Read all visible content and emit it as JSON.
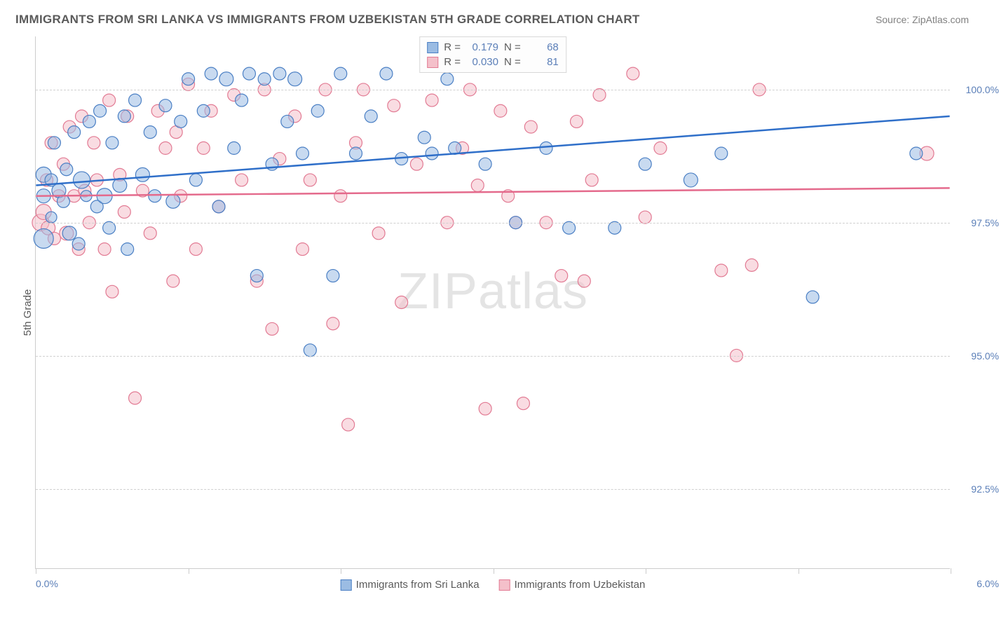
{
  "title": "IMMIGRANTS FROM SRI LANKA VS IMMIGRANTS FROM UZBEKISTAN 5TH GRADE CORRELATION CHART",
  "source": "Source: ZipAtlas.com",
  "watermark_a": "ZIP",
  "watermark_b": "atlas",
  "chart": {
    "type": "scatter",
    "ylabel": "5th Grade",
    "xlim": [
      0.0,
      6.0
    ],
    "ylim": [
      91.0,
      101.0
    ],
    "yticks": [
      92.5,
      95.0,
      97.5,
      100.0
    ],
    "ytick_labels": [
      "92.5%",
      "95.0%",
      "97.5%",
      "100.0%"
    ],
    "xticks": [
      0.0,
      1.0,
      2.0,
      3.0,
      4.0,
      5.0,
      6.0
    ],
    "xtick_label_left": "0.0%",
    "xtick_label_right": "6.0%",
    "background_color": "#ffffff",
    "grid_color": "#d0d0d0",
    "axis_color": "#cccccc",
    "series": [
      {
        "name": "Immigrants from Sri Lanka",
        "color_fill": "#9bbce3",
        "color_stroke": "#4a7fc4",
        "line_color": "#2f6fc9",
        "marker_opacity": 0.55,
        "trend": {
          "x1": 0.0,
          "y1": 98.2,
          "x2": 6.0,
          "y2": 99.5
        },
        "stats": {
          "R": "0.179",
          "N": "68"
        },
        "points": [
          {
            "x": 0.05,
            "y": 98.4,
            "r": 11
          },
          {
            "x": 0.05,
            "y": 98.0,
            "r": 10
          },
          {
            "x": 0.05,
            "y": 97.2,
            "r": 14
          },
          {
            "x": 0.1,
            "y": 98.3,
            "r": 9
          },
          {
            "x": 0.1,
            "y": 97.6,
            "r": 8
          },
          {
            "x": 0.12,
            "y": 99.0,
            "r": 9
          },
          {
            "x": 0.15,
            "y": 98.1,
            "r": 10
          },
          {
            "x": 0.18,
            "y": 97.9,
            "r": 9
          },
          {
            "x": 0.2,
            "y": 98.5,
            "r": 9
          },
          {
            "x": 0.22,
            "y": 97.3,
            "r": 10
          },
          {
            "x": 0.25,
            "y": 99.2,
            "r": 9
          },
          {
            "x": 0.28,
            "y": 97.1,
            "r": 9
          },
          {
            "x": 0.3,
            "y": 98.3,
            "r": 12
          },
          {
            "x": 0.33,
            "y": 98.0,
            "r": 8
          },
          {
            "x": 0.35,
            "y": 99.4,
            "r": 9
          },
          {
            "x": 0.4,
            "y": 97.8,
            "r": 9
          },
          {
            "x": 0.42,
            "y": 99.6,
            "r": 9
          },
          {
            "x": 0.45,
            "y": 98.0,
            "r": 11
          },
          {
            "x": 0.48,
            "y": 97.4,
            "r": 9
          },
          {
            "x": 0.5,
            "y": 99.0,
            "r": 9
          },
          {
            "x": 0.55,
            "y": 98.2,
            "r": 10
          },
          {
            "x": 0.58,
            "y": 99.5,
            "r": 9
          },
          {
            "x": 0.6,
            "y": 97.0,
            "r": 9
          },
          {
            "x": 0.65,
            "y": 99.8,
            "r": 9
          },
          {
            "x": 0.7,
            "y": 98.4,
            "r": 10
          },
          {
            "x": 0.75,
            "y": 99.2,
            "r": 9
          },
          {
            "x": 0.78,
            "y": 98.0,
            "r": 9
          },
          {
            "x": 0.85,
            "y": 99.7,
            "r": 9
          },
          {
            "x": 0.9,
            "y": 97.9,
            "r": 10
          },
          {
            "x": 0.95,
            "y": 99.4,
            "r": 9
          },
          {
            "x": 1.0,
            "y": 100.2,
            "r": 9
          },
          {
            "x": 1.05,
            "y": 98.3,
            "r": 9
          },
          {
            "x": 1.1,
            "y": 99.6,
            "r": 9
          },
          {
            "x": 1.15,
            "y": 100.3,
            "r": 9
          },
          {
            "x": 1.2,
            "y": 97.8,
            "r": 9
          },
          {
            "x": 1.25,
            "y": 100.2,
            "r": 10
          },
          {
            "x": 1.3,
            "y": 98.9,
            "r": 9
          },
          {
            "x": 1.35,
            "y": 99.8,
            "r": 9
          },
          {
            "x": 1.4,
            "y": 100.3,
            "r": 9
          },
          {
            "x": 1.45,
            "y": 96.5,
            "r": 9
          },
          {
            "x": 1.5,
            "y": 100.2,
            "r": 9
          },
          {
            "x": 1.55,
            "y": 98.6,
            "r": 9
          },
          {
            "x": 1.6,
            "y": 100.3,
            "r": 9
          },
          {
            "x": 1.65,
            "y": 99.4,
            "r": 9
          },
          {
            "x": 1.7,
            "y": 100.2,
            "r": 10
          },
          {
            "x": 1.75,
            "y": 98.8,
            "r": 9
          },
          {
            "x": 1.8,
            "y": 95.1,
            "r": 9
          },
          {
            "x": 1.85,
            "y": 99.6,
            "r": 9
          },
          {
            "x": 1.95,
            "y": 96.5,
            "r": 9
          },
          {
            "x": 2.0,
            "y": 100.3,
            "r": 9
          },
          {
            "x": 2.1,
            "y": 98.8,
            "r": 9
          },
          {
            "x": 2.2,
            "y": 99.5,
            "r": 9
          },
          {
            "x": 2.3,
            "y": 100.3,
            "r": 9
          },
          {
            "x": 2.4,
            "y": 98.7,
            "r": 9
          },
          {
            "x": 2.55,
            "y": 99.1,
            "r": 9
          },
          {
            "x": 2.6,
            "y": 98.8,
            "r": 9
          },
          {
            "x": 2.7,
            "y": 100.2,
            "r": 9
          },
          {
            "x": 2.75,
            "y": 98.9,
            "r": 9
          },
          {
            "x": 2.95,
            "y": 98.6,
            "r": 9
          },
          {
            "x": 3.15,
            "y": 97.5,
            "r": 9
          },
          {
            "x": 3.35,
            "y": 98.9,
            "r": 9
          },
          {
            "x": 3.5,
            "y": 97.4,
            "r": 9
          },
          {
            "x": 3.8,
            "y": 97.4,
            "r": 9
          },
          {
            "x": 4.0,
            "y": 98.6,
            "r": 9
          },
          {
            "x": 4.3,
            "y": 98.3,
            "r": 10
          },
          {
            "x": 4.5,
            "y": 98.8,
            "r": 9
          },
          {
            "x": 5.1,
            "y": 96.1,
            "r": 9
          },
          {
            "x": 5.78,
            "y": 98.8,
            "r": 9
          }
        ]
      },
      {
        "name": "Immigrants from Uzbekistan",
        "color_fill": "#f4c0ca",
        "color_stroke": "#e27a93",
        "line_color": "#e46a8c",
        "marker_opacity": 0.55,
        "trend": {
          "x1": 0.0,
          "y1": 98.0,
          "x2": 6.0,
          "y2": 98.15
        },
        "stats": {
          "R": "0.030",
          "N": "81"
        },
        "points": [
          {
            "x": 0.03,
            "y": 97.5,
            "r": 12
          },
          {
            "x": 0.05,
            "y": 97.7,
            "r": 11
          },
          {
            "x": 0.07,
            "y": 98.3,
            "r": 9
          },
          {
            "x": 0.08,
            "y": 97.4,
            "r": 10
          },
          {
            "x": 0.1,
            "y": 99.0,
            "r": 9
          },
          {
            "x": 0.12,
            "y": 97.2,
            "r": 9
          },
          {
            "x": 0.15,
            "y": 98.0,
            "r": 9
          },
          {
            "x": 0.18,
            "y": 98.6,
            "r": 9
          },
          {
            "x": 0.2,
            "y": 97.3,
            "r": 10
          },
          {
            "x": 0.22,
            "y": 99.3,
            "r": 9
          },
          {
            "x": 0.25,
            "y": 98.0,
            "r": 9
          },
          {
            "x": 0.28,
            "y": 97.0,
            "r": 9
          },
          {
            "x": 0.3,
            "y": 99.5,
            "r": 9
          },
          {
            "x": 0.32,
            "y": 98.1,
            "r": 9
          },
          {
            "x": 0.35,
            "y": 97.5,
            "r": 9
          },
          {
            "x": 0.38,
            "y": 99.0,
            "r": 9
          },
          {
            "x": 0.4,
            "y": 98.3,
            "r": 9
          },
          {
            "x": 0.45,
            "y": 97.0,
            "r": 9
          },
          {
            "x": 0.48,
            "y": 99.8,
            "r": 9
          },
          {
            "x": 0.5,
            "y": 96.2,
            "r": 9
          },
          {
            "x": 0.55,
            "y": 98.4,
            "r": 9
          },
          {
            "x": 0.58,
            "y": 97.7,
            "r": 9
          },
          {
            "x": 0.6,
            "y": 99.5,
            "r": 9
          },
          {
            "x": 0.65,
            "y": 94.2,
            "r": 9
          },
          {
            "x": 0.7,
            "y": 98.1,
            "r": 9
          },
          {
            "x": 0.75,
            "y": 97.3,
            "r": 9
          },
          {
            "x": 0.8,
            "y": 99.6,
            "r": 9
          },
          {
            "x": 0.85,
            "y": 98.9,
            "r": 9
          },
          {
            "x": 0.9,
            "y": 96.4,
            "r": 9
          },
          {
            "x": 0.92,
            "y": 99.2,
            "r": 9
          },
          {
            "x": 0.95,
            "y": 98.0,
            "r": 9
          },
          {
            "x": 1.0,
            "y": 100.1,
            "r": 9
          },
          {
            "x": 1.05,
            "y": 97.0,
            "r": 9
          },
          {
            "x": 1.1,
            "y": 98.9,
            "r": 9
          },
          {
            "x": 1.15,
            "y": 99.6,
            "r": 9
          },
          {
            "x": 1.2,
            "y": 97.8,
            "r": 9
          },
          {
            "x": 1.3,
            "y": 99.9,
            "r": 9
          },
          {
            "x": 1.35,
            "y": 98.3,
            "r": 9
          },
          {
            "x": 1.45,
            "y": 96.4,
            "r": 9
          },
          {
            "x": 1.5,
            "y": 100.0,
            "r": 9
          },
          {
            "x": 1.55,
            "y": 95.5,
            "r": 9
          },
          {
            "x": 1.6,
            "y": 98.7,
            "r": 9
          },
          {
            "x": 1.7,
            "y": 99.5,
            "r": 9
          },
          {
            "x": 1.75,
            "y": 97.0,
            "r": 9
          },
          {
            "x": 1.8,
            "y": 98.3,
            "r": 9
          },
          {
            "x": 1.9,
            "y": 100.0,
            "r": 9
          },
          {
            "x": 1.95,
            "y": 95.6,
            "r": 9
          },
          {
            "x": 2.0,
            "y": 98.0,
            "r": 9
          },
          {
            "x": 2.05,
            "y": 93.7,
            "r": 9
          },
          {
            "x": 2.1,
            "y": 99.0,
            "r": 9
          },
          {
            "x": 2.15,
            "y": 100.0,
            "r": 9
          },
          {
            "x": 2.25,
            "y": 97.3,
            "r": 9
          },
          {
            "x": 2.35,
            "y": 99.7,
            "r": 9
          },
          {
            "x": 2.4,
            "y": 96.0,
            "r": 9
          },
          {
            "x": 2.5,
            "y": 98.6,
            "r": 9
          },
          {
            "x": 2.6,
            "y": 99.8,
            "r": 9
          },
          {
            "x": 2.7,
            "y": 97.5,
            "r": 9
          },
          {
            "x": 2.8,
            "y": 98.9,
            "r": 9
          },
          {
            "x": 2.85,
            "y": 100.0,
            "r": 9
          },
          {
            "x": 2.9,
            "y": 98.2,
            "r": 9
          },
          {
            "x": 2.95,
            "y": 94.0,
            "r": 9
          },
          {
            "x": 3.05,
            "y": 99.6,
            "r": 9
          },
          {
            "x": 3.1,
            "y": 98.0,
            "r": 9
          },
          {
            "x": 3.15,
            "y": 97.5,
            "r": 9
          },
          {
            "x": 3.2,
            "y": 94.1,
            "r": 9
          },
          {
            "x": 3.25,
            "y": 99.3,
            "r": 9
          },
          {
            "x": 3.35,
            "y": 97.5,
            "r": 9
          },
          {
            "x": 3.45,
            "y": 96.5,
            "r": 9
          },
          {
            "x": 3.55,
            "y": 99.4,
            "r": 9
          },
          {
            "x": 3.6,
            "y": 96.4,
            "r": 9
          },
          {
            "x": 3.65,
            "y": 98.3,
            "r": 9
          },
          {
            "x": 3.7,
            "y": 99.9,
            "r": 9
          },
          {
            "x": 3.92,
            "y": 100.3,
            "r": 9
          },
          {
            "x": 4.0,
            "y": 97.6,
            "r": 9
          },
          {
            "x": 4.1,
            "y": 98.9,
            "r": 9
          },
          {
            "x": 4.5,
            "y": 96.6,
            "r": 9
          },
          {
            "x": 4.6,
            "y": 95.0,
            "r": 9
          },
          {
            "x": 4.7,
            "y": 96.7,
            "r": 9
          },
          {
            "x": 4.75,
            "y": 100.0,
            "r": 9
          },
          {
            "x": 5.85,
            "y": 98.8,
            "r": 10
          }
        ]
      }
    ]
  },
  "legend_r_label": "R =",
  "legend_n_label": "N ="
}
